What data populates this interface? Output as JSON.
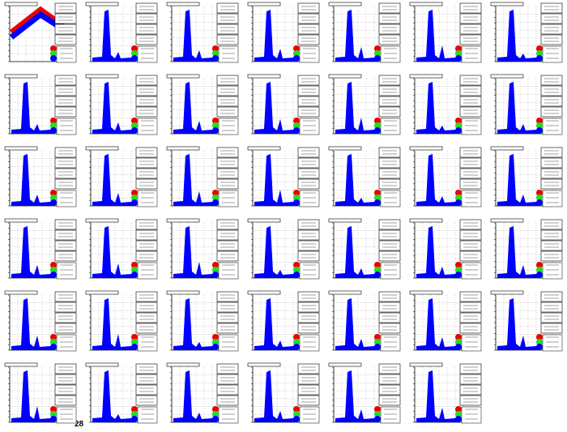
{
  "footer_label": "28"
}
